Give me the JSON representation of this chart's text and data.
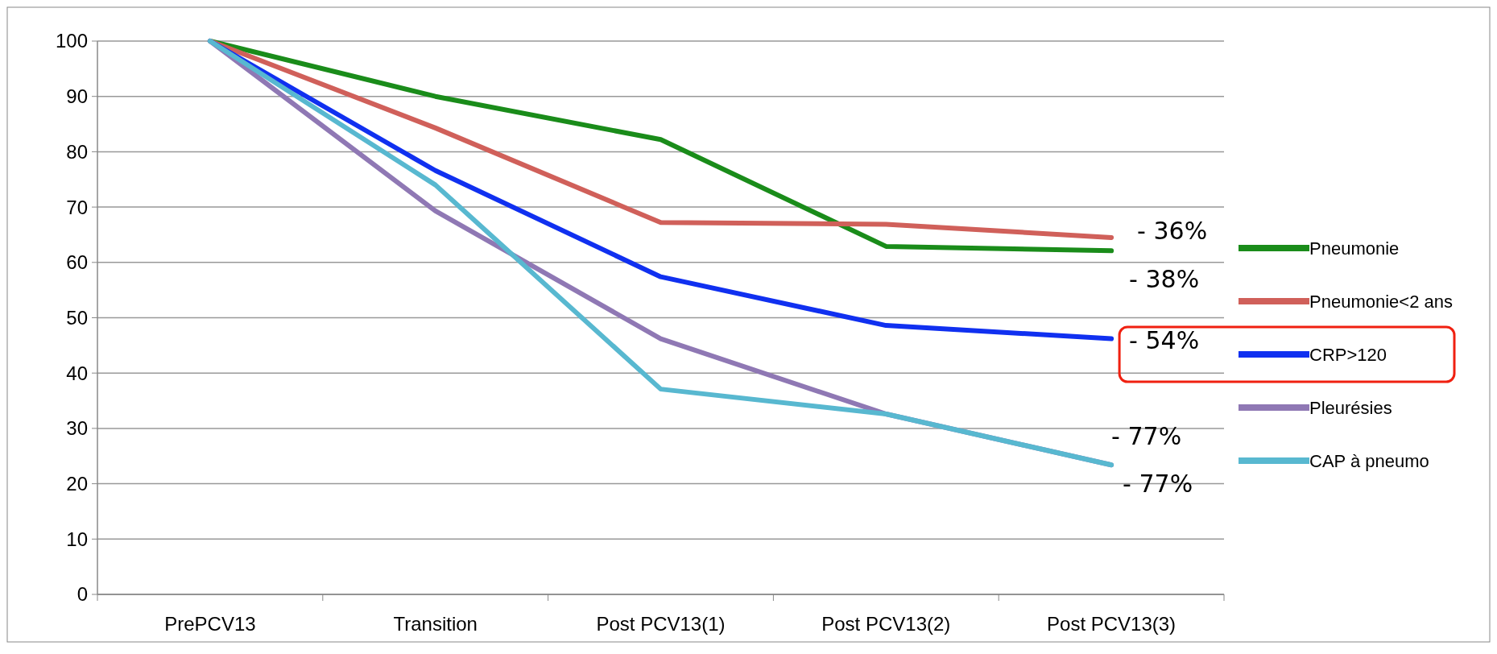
{
  "chart_data": {
    "type": "line",
    "categories": [
      "PrePCV13",
      "Transition",
      "Post PCV13(1)",
      "Post PCV13(2)",
      "Post PCV13(3)"
    ],
    "series": [
      {
        "name": "Pneumonie",
        "color": "#1a8c1a",
        "values": [
          100,
          90,
          82.2,
          62.9,
          62.1
        ]
      },
      {
        "name": "Pneumonie<2 ans",
        "color": "#d0605a",
        "values": [
          100,
          84.3,
          67.2,
          66.9,
          64.5
        ]
      },
      {
        "name": "CRP>120",
        "color": "#1030f0",
        "values": [
          100,
          76.6,
          57.4,
          48.6,
          46.2
        ]
      },
      {
        "name": "Pleurésies",
        "color": "#8f78b4",
        "values": [
          100,
          69.3,
          46.2,
          32.6,
          23.4
        ]
      },
      {
        "name": "CAP à pneumo",
        "color": "#58b8d0",
        "values": [
          100,
          74,
          37.1,
          32.6,
          23.4
        ]
      }
    ],
    "ylim": [
      0,
      100
    ],
    "yticks": [
      0,
      10,
      20,
      30,
      40,
      50,
      60,
      70,
      80,
      90,
      100
    ],
    "grid": "y",
    "legend": "right",
    "marker": "none",
    "line_style": "solid",
    "annotations": [
      "- 36%",
      "- 38%",
      "- 54%",
      "- 77%",
      "- 77%"
    ]
  }
}
